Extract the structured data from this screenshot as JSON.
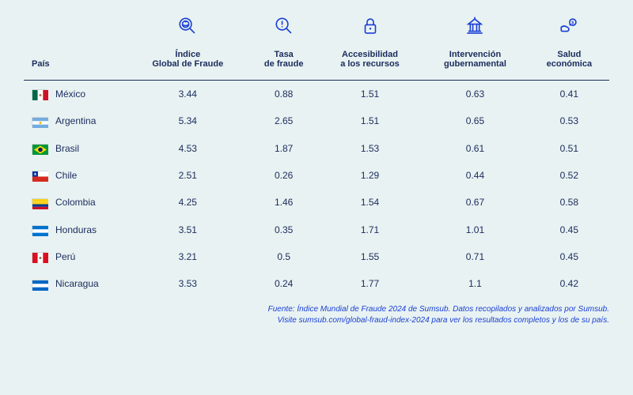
{
  "columns": {
    "country": "País",
    "global_index": "Índice\nGlobal de Fraude",
    "fraud_rate": "Tasa\nde fraude",
    "accessibility": "Accesibilidad\na los recursos",
    "gov": "Intervención\ngubernamental",
    "economy": "Salud\neconómica"
  },
  "rows": [
    {
      "country": "México",
      "flag": "mx",
      "v": [
        "3.44",
        "0.88",
        "1.51",
        "0.63",
        "0.41"
      ]
    },
    {
      "country": "Argentina",
      "flag": "ar",
      "v": [
        "5.34",
        "2.65",
        "1.51",
        "0.65",
        "0.53"
      ]
    },
    {
      "country": "Brasil",
      "flag": "br",
      "v": [
        "4.53",
        "1.87",
        "1.53",
        "0.61",
        "0.51"
      ]
    },
    {
      "country": "Chile",
      "flag": "cl",
      "v": [
        "2.51",
        "0.26",
        "1.29",
        "0.44",
        "0.52"
      ]
    },
    {
      "country": "Colombia",
      "flag": "co",
      "v": [
        "4.25",
        "1.46",
        "1.54",
        "0.67",
        "0.58"
      ]
    },
    {
      "country": "Honduras",
      "flag": "hn",
      "v": [
        "3.51",
        "0.35",
        "1.71",
        "1.01",
        "0.45"
      ]
    },
    {
      "country": "Perú",
      "flag": "pe",
      "v": [
        "3.21",
        "0.5",
        "1.55",
        "0.71",
        "0.45"
      ]
    },
    {
      "country": "Nicaragua",
      "flag": "ni",
      "v": [
        "3.53",
        "0.24",
        "1.77",
        "1.1",
        "0.42"
      ]
    }
  ],
  "flags": {
    "mx": {
      "stripes": [
        "#006847",
        "#ffffff",
        "#ce1126"
      ],
      "dir": "v",
      "emblem": "#a67c52"
    },
    "ar": {
      "stripes": [
        "#74acdf",
        "#ffffff",
        "#74acdf"
      ],
      "dir": "h",
      "emblem": "#f6b40e"
    },
    "br": {
      "bg": "#009739",
      "diamond": "#fedd00",
      "circle": "#012169"
    },
    "cl": {
      "type": "cl",
      "blue": "#0033a0",
      "red": "#d52b1e",
      "white": "#ffffff"
    },
    "co": {
      "stripes": [
        "#fcd116",
        "#fcd116",
        "#003893",
        "#ce1126"
      ],
      "dir": "h"
    },
    "hn": {
      "stripes": [
        "#0073cf",
        "#ffffff",
        "#0073cf"
      ],
      "dir": "h"
    },
    "pe": {
      "stripes": [
        "#d91023",
        "#ffffff",
        "#d91023"
      ],
      "dir": "v",
      "emblem": "#8b7355"
    },
    "ni": {
      "stripes": [
        "#0067c6",
        "#ffffff",
        "#0067c6"
      ],
      "dir": "h"
    }
  },
  "footer": {
    "line1": "Fuente: Índice Mundial de Fraude 2024 de Sumsub. Datos recopilados y analizados por Sumsub.",
    "line2": "Visite sumsub.com/global-fraud-index-2024 para ver los resultados completos y los de su país."
  },
  "style": {
    "background": "#e8f2f2",
    "text_color": "#1a2b5c",
    "icon_color": "#1a3fd4",
    "border_color": "#1a2b5c",
    "header_fontsize": 11,
    "body_fontsize": 12,
    "footer_fontsize": 10
  }
}
